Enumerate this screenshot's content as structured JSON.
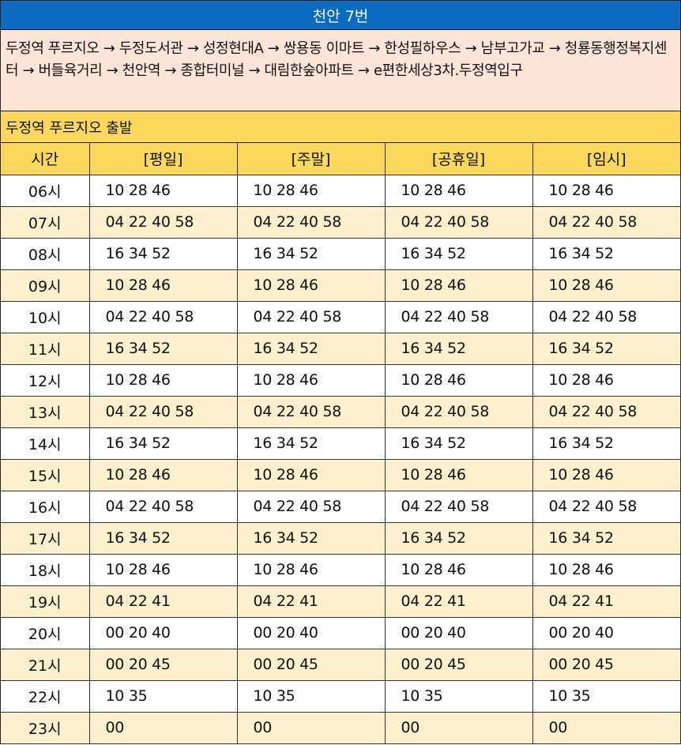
{
  "title": "천안 7번",
  "route": "두정역 푸르지오 → 두정도서관 → 성정현대A → 쌍용동 이마트 → 한성필하우스 → 남부고가교 → 청룡동행정복지센터 → 버들육거리 → 천안역 → 종합터미널 → 대림한숲아파트 → e편한세상3차.두정역입구",
  "departure": "두정역 푸르지오 출발",
  "headers": [
    "시간",
    "[평일]",
    "[주말]",
    "[공휴일]",
    "[임시]"
  ],
  "rows": [
    {
      "hour": "06시",
      "times": [
        "10 28 46",
        "10 28 46",
        "10 28 46",
        "10 28 46"
      ]
    },
    {
      "hour": "07시",
      "times": [
        "04 22 40 58",
        "04 22 40 58",
        "04 22 40 58",
        "04 22 40 58"
      ]
    },
    {
      "hour": "08시",
      "times": [
        "16 34 52",
        "16 34 52",
        "16 34 52",
        "16 34 52"
      ]
    },
    {
      "hour": "09시",
      "times": [
        "10 28 46",
        "10 28 46",
        "10 28 46",
        "10 28 46"
      ]
    },
    {
      "hour": "10시",
      "times": [
        "04 22 40 58",
        "04 22 40 58",
        "04 22 40 58",
        "04 22 40 58"
      ]
    },
    {
      "hour": "11시",
      "times": [
        "16 34 52",
        "16 34 52",
        "16 34 52",
        "16 34 52"
      ]
    },
    {
      "hour": "12시",
      "times": [
        "10 28 46",
        "10 28 46",
        "10 28 46",
        "10 28 46"
      ]
    },
    {
      "hour": "13시",
      "times": [
        "04 22 40 58",
        "04 22 40 58",
        "04 22 40 58",
        "04 22 40 58"
      ]
    },
    {
      "hour": "14시",
      "times": [
        "16 34 52",
        "16 34 52",
        "16 34 52",
        "16 34 52"
      ]
    },
    {
      "hour": "15시",
      "times": [
        "10 28 46",
        "10 28 46",
        "10 28 46",
        "10 28 46"
      ]
    },
    {
      "hour": "16시",
      "times": [
        "04 22 40 58",
        "04 22 40 58",
        "04 22 40 58",
        "04 22 40 58"
      ]
    },
    {
      "hour": "17시",
      "times": [
        "16 34 52",
        "16 34 52",
        "16 34 52",
        "16 34 52"
      ]
    },
    {
      "hour": "18시",
      "times": [
        "10 28 46",
        "10 28 46",
        "10 28 46",
        "10 28 46"
      ]
    },
    {
      "hour": "19시",
      "times": [
        "04 22 41",
        "04 22 41",
        "04 22 41",
        "04 22 41"
      ]
    },
    {
      "hour": "20시",
      "times": [
        "00 20 40",
        "00 20 40",
        "00 20 40",
        "00 20 40"
      ]
    },
    {
      "hour": "21시",
      "times": [
        "00 20 45",
        "00 20 45",
        "00 20 45",
        "00 20 45"
      ]
    },
    {
      "hour": "22시",
      "times": [
        "10 35",
        "10 35",
        "10 35",
        "10 35"
      ]
    },
    {
      "hour": "23시",
      "times": [
        "00",
        "00",
        "00",
        "00"
      ]
    }
  ],
  "colors": {
    "title_bg": "#0a6cc0",
    "route_bg": "#fde4d8",
    "header_bg": "#fcd75e",
    "alt_row_bg": "#fdf0cf"
  }
}
